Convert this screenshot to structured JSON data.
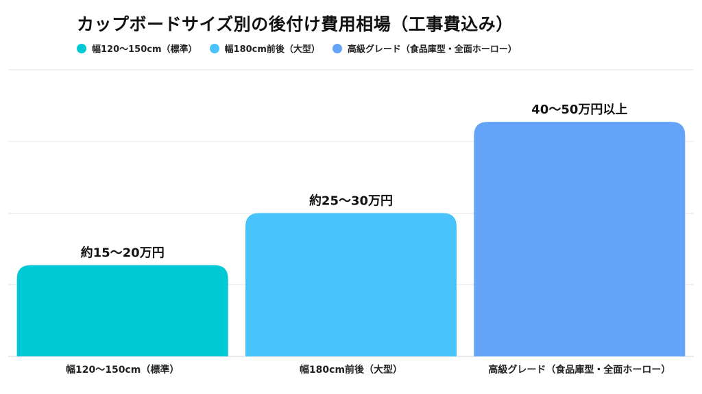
{
  "chart_data": {
    "type": "bar",
    "title": "カップボードサイズ別の後付け費用相場（工事費込み）",
    "categories": [
      "幅120〜150cm（標準）",
      "幅180cm前後（大型）",
      "高級グレード（食品庫型・全面ホーロー）"
    ],
    "series": [
      {
        "values": [
          17.5,
          27.5,
          45
        ],
        "data_labels": [
          "約15〜20万円",
          "約25〜30万円",
          "40〜50万円以上"
        ]
      }
    ],
    "colors": [
      "#00C8D4",
      "#49C3FB",
      "#64A4F8"
    ],
    "ylim": [
      0,
      55
    ],
    "grid": true,
    "legend_placement": "top-left",
    "xlabel": "",
    "ylabel": ""
  }
}
